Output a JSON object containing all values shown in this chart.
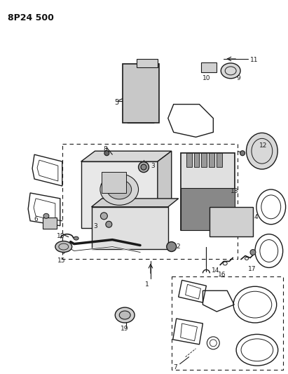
{
  "title": "8P24 500",
  "bg_color": "#ffffff",
  "lc": "#1a1a1a",
  "fig_width": 4.11,
  "fig_height": 5.33,
  "dpi": 100
}
